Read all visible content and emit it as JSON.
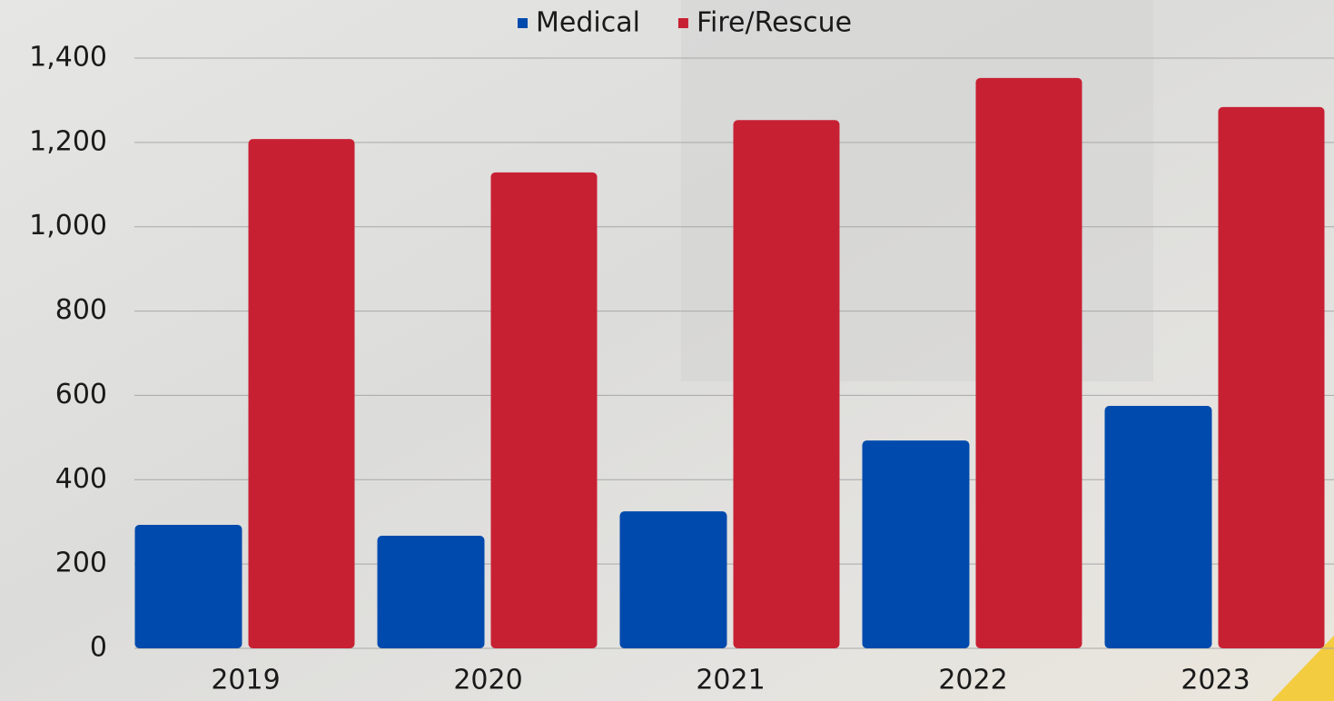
{
  "chart_data": {
    "type": "bar",
    "categories": [
      "2019",
      "2020",
      "2021",
      "2022",
      "2023"
    ],
    "series": [
      {
        "name": "Medical",
        "color": "#004aad",
        "values": [
          293,
          267,
          325,
          493,
          575
        ]
      },
      {
        "name": "Fire/Rescue",
        "color": "#c82033",
        "values": [
          1208,
          1129,
          1253,
          1353,
          1284
        ]
      }
    ],
    "ylim": [
      0,
      1400
    ],
    "yticks": [
      0,
      200,
      400,
      600,
      800,
      {
        "value": 1000,
        "label": "1,000"
      },
      {
        "value": 1200,
        "label": "1,200"
      },
      {
        "value": 1400,
        "label": "1,400"
      }
    ],
    "grid": true,
    "legend": "top"
  }
}
